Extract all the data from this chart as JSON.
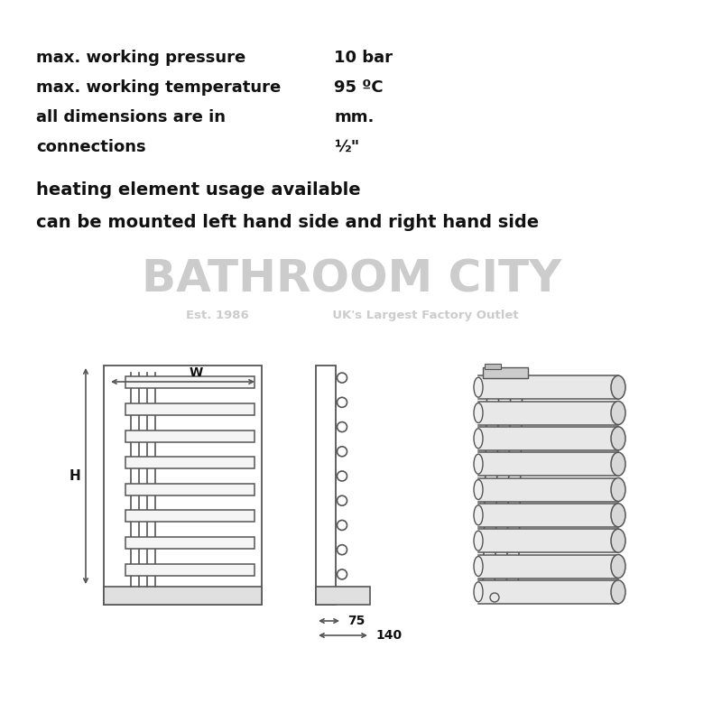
{
  "bg_color": "#ffffff",
  "line_color": "#555555",
  "text_color": "#111111",
  "watermark_color": "#cccccc",
  "specs": [
    {
      "label": "max. working pressure",
      "value": "10 bar"
    },
    {
      "label": "max. working temperature",
      "value": "95 ºC"
    },
    {
      "label": "all dimensions are in",
      "value": "mm."
    },
    {
      "label": "connections",
      "value": "½\""
    }
  ],
  "extra_lines": [
    "heating element usage available",
    "can be mounted left hand side and right hand side"
  ],
  "watermark_line1": "BATHROOM CITY",
  "watermark_line2": "Est. 1986                    UK's Largest Factory Outlet",
  "dim_75": "75",
  "dim_140": "140",
  "dim_W": "W",
  "dim_H": "H",
  "n_bars": 8,
  "n_side_circles": 9
}
